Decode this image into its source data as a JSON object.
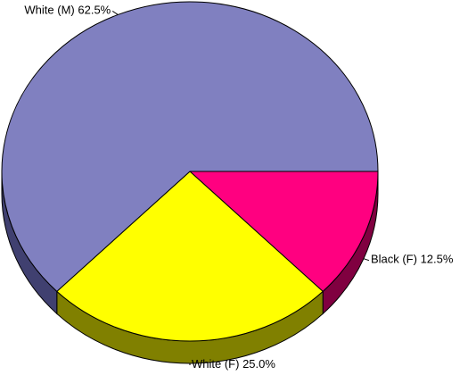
{
  "chart_data": {
    "type": "pie",
    "three_d": true,
    "categories": [
      "Black (F)",
      "White (F)",
      "White (M)"
    ],
    "values": [
      12.5,
      25,
      62.5
    ],
    "value_labels": [
      "12.5%",
      "25.0%",
      "62.5%"
    ],
    "colors": [
      "#ff0080",
      "#ffff00",
      "#8080c0"
    ],
    "side_colors": [
      "#800040",
      "#808000",
      "#404070"
    ]
  }
}
